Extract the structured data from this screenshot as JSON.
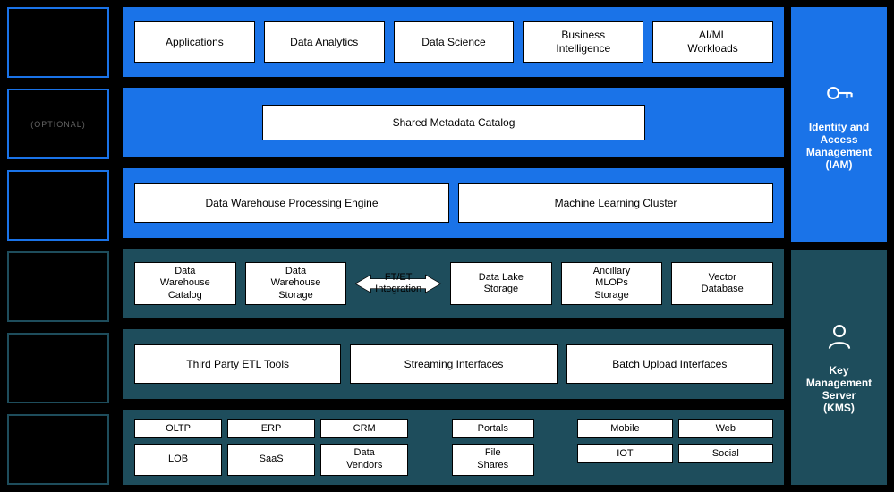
{
  "colors": {
    "blue": "#1a73e8",
    "teal": "#1e4d5c",
    "black": "#000000",
    "white": "#ffffff",
    "muted": "#666666"
  },
  "left": {
    "boxes": [
      {
        "color": "blue"
      },
      {
        "color": "blue",
        "sublabel": "(OPTIONAL)"
      },
      {
        "color": "blue"
      },
      {
        "color": "teal"
      },
      {
        "color": "teal"
      },
      {
        "color": "teal"
      }
    ]
  },
  "rows": {
    "r1": [
      "Applications",
      "Data Analytics",
      "Data Science",
      "Business\nIntelligence",
      "AI/ML\nWorkloads"
    ],
    "r2": "Shared Metadata Catalog",
    "r3": [
      "Data Warehouse Processing Engine",
      "Machine Learning Cluster"
    ],
    "r4": {
      "cells_left": [
        "Data\nWarehouse\nCatalog",
        "Data\nWarehouse\nStorage"
      ],
      "arrow_label": "FT/ET\nIntegration",
      "cells_right": [
        "Data Lake\nStorage",
        "Ancillary\nMLOPs\nStorage",
        "Vector\nDatabase"
      ]
    },
    "r5": [
      "Third Party ETL Tools",
      "Streaming Interfaces",
      "Batch Upload Interfaces"
    ],
    "r6": {
      "group1": [
        [
          "OLTP",
          "ERP",
          "CRM"
        ],
        [
          "LOB",
          "SaaS",
          "Data\nVendors"
        ]
      ],
      "group2": [
        [
          "Portals"
        ],
        [
          "File\nShares"
        ]
      ],
      "group3": [
        [
          "Mobile",
          "Web"
        ],
        [
          "IOT",
          "Social"
        ]
      ]
    }
  },
  "right": {
    "iam": {
      "label": "Identity and\nAccess\nManagement\n(IAM)",
      "icon": "key"
    },
    "kms": {
      "label": "Key\nManagement\nServer\n(KMS)",
      "icon": "user"
    }
  }
}
